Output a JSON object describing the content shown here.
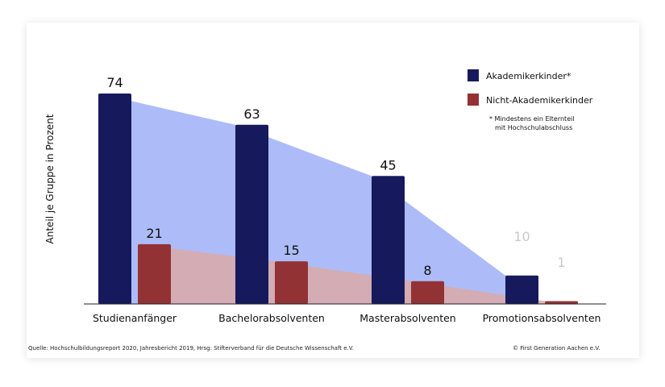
{
  "chart_data": {
    "type": "bar",
    "ylabel": "Anteil je Gruppe in Prozent",
    "categories": [
      "Studienanfänger",
      "Bachelorabsolventen",
      "Masterabsolventen",
      "Promotionsabsolventen"
    ],
    "series": [
      {
        "name": "Akademikerkinder*",
        "values": [
          74,
          63,
          45,
          10
        ],
        "color": "#161a5c",
        "area_color": "#a9b8f8"
      },
      {
        "name": "Nicht-Akademikerkinder",
        "values": [
          21,
          15,
          8,
          1
        ],
        "color": "#923234",
        "area_color": "#d9a9a8"
      }
    ],
    "data_labels": [
      "74",
      "63",
      "45",
      "10",
      "21",
      "15",
      "8",
      "1"
    ],
    "legend_position": "top-right",
    "legend_note": [
      "* Mindestens ein Elternteil",
      "mit Hochschulabschluss"
    ],
    "grid": false,
    "ylim": [
      0,
      78
    ]
  },
  "footer": {
    "source": "Quelle: Hochschulbildungsreport 2020, Jahresbericht 2019, Hrsg: Stifterverband für die Deutsche Wissenschaft e.V.",
    "copyright": "© First Generation Aachen e.V."
  }
}
